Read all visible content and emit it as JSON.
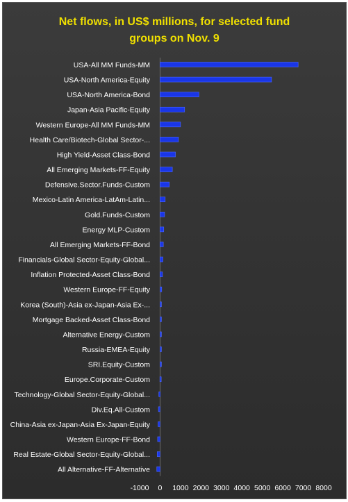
{
  "chart_data": {
    "type": "bar",
    "orientation": "horizontal",
    "title_line1": "Net flows, in US$ millions, for selected fund",
    "title_line2": "groups on Nov. 9",
    "categories": [
      "USA-All MM Funds-MM",
      "USA-North America-Equity",
      "USA-North America-Bond",
      "Japan-Asia Pacific-Equity",
      "Western Europe-All MM Funds-MM",
      "Health Care/Biotech-Global Sector-...",
      "High Yield-Asset Class-Bond",
      "All Emerging Markets-FF-Equity",
      "Defensive.Sector.Funds-Custom",
      "Mexico-Latin America-LatAm-Latin...",
      "Gold.Funds-Custom",
      "Energy MLP-Custom",
      "All Emerging Markets-FF-Bond",
      "Financials-Global Sector-Equity-Global...",
      "Inflation Protected-Asset Class-Bond",
      "Western Europe-FF-Equity",
      "Korea (South)-Asia ex-Japan-Asia Ex-...",
      "Mortgage Backed-Asset Class-Bond",
      "Alternative Energy-Custom",
      "Russia-EMEA-Equity",
      "SRI.Equity-Custom",
      "Europe.Corporate-Custom",
      "Technology-Global Sector-Equity-Global...",
      "Div.Eq.All-Custom",
      "China-Asia ex-Japan-Asia Ex-Japan-Equity",
      "Western Europe-FF-Bond",
      "Real Estate-Global Sector-Equity-Global...",
      "All Alternative-FF-Alternative"
    ],
    "values": [
      6750,
      5450,
      1900,
      1200,
      1000,
      900,
      750,
      600,
      450,
      250,
      220,
      180,
      160,
      140,
      120,
      80,
      40,
      30,
      30,
      30,
      20,
      -10,
      -60,
      -80,
      -100,
      -120,
      -140,
      -160
    ],
    "xlim": [
      -1000,
      8000
    ],
    "xticks": [
      -1000,
      0,
      1000,
      2000,
      3000,
      4000,
      5000,
      6000,
      7000,
      8000
    ],
    "colors": {
      "bar": "#1a36e8",
      "bar_edge": "#4f6bff",
      "title": "#f0e000",
      "text": "#ffffff",
      "background": "#363636"
    },
    "grid": false,
    "legend": "none"
  }
}
